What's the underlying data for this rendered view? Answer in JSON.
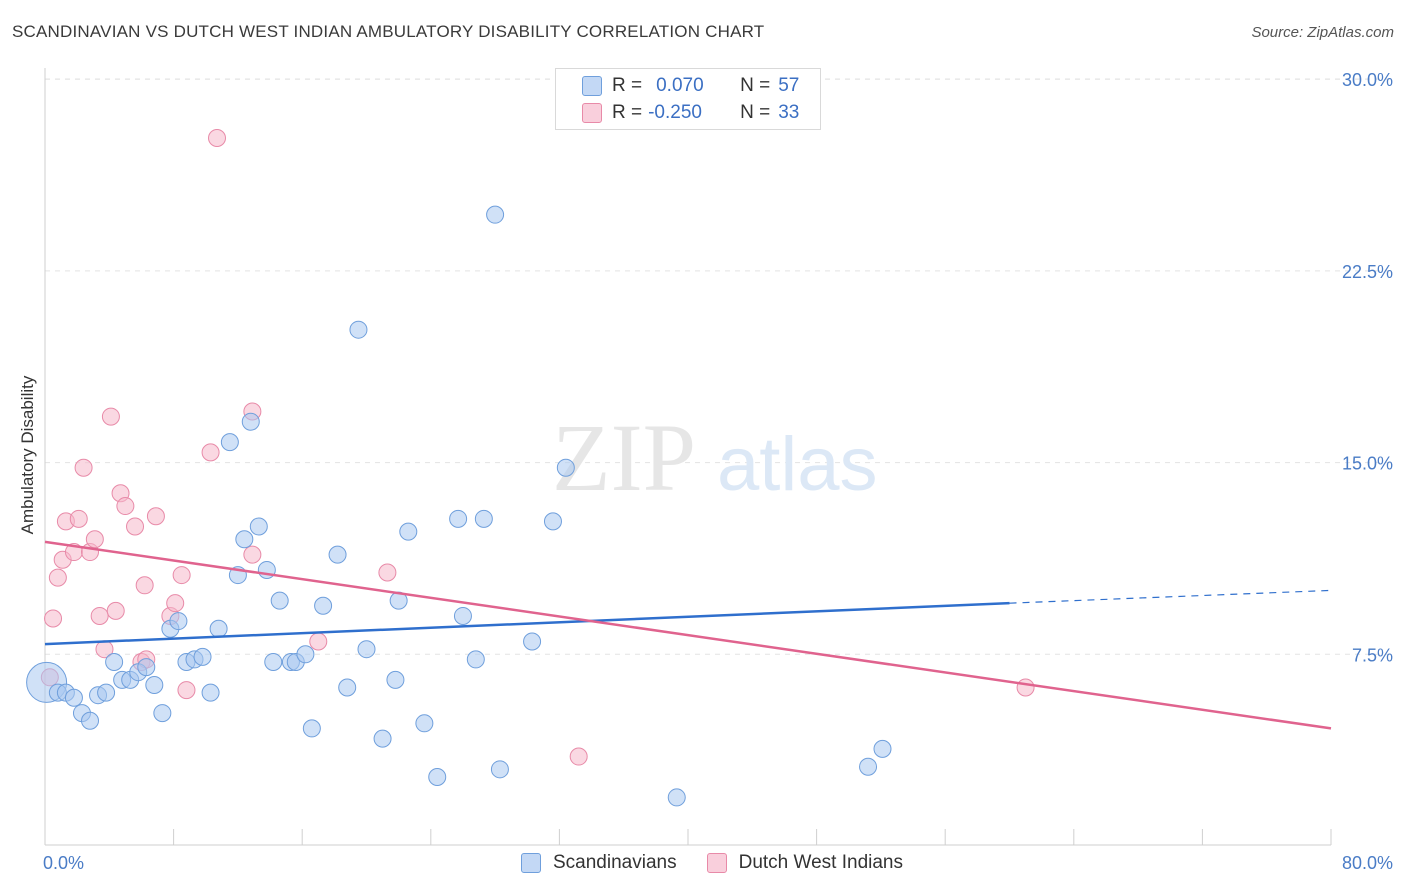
{
  "header": {
    "title": "SCANDINAVIAN VS DUTCH WEST INDIAN AMBULATORY DISABILITY CORRELATION CHART",
    "source": "Source: ZipAtlas.com"
  },
  "watermark": {
    "zip": "ZIP",
    "atlas": "atlas"
  },
  "legend_top": {
    "rows": [
      {
        "r_label": "R =",
        "r_value": "0.070",
        "n_label": "N =",
        "n_value": "57",
        "color": "#aac8f0"
      },
      {
        "r_label": "R =",
        "r_value": "-0.250",
        "n_label": "N =",
        "n_value": "33",
        "color": "#f5b8cb"
      }
    ]
  },
  "legend_bottom": {
    "items": [
      {
        "label": "Scandinavians",
        "color": "#aac8f0"
      },
      {
        "label": "Dutch West Indians",
        "color": "#f5b8cb"
      }
    ]
  },
  "chart_data": {
    "type": "scatter",
    "ylabel": "Ambulatory Disability",
    "xlim": [
      0,
      80
    ],
    "ylim": [
      0,
      31
    ],
    "x_tick_labels": [
      "0.0%",
      "80.0%"
    ],
    "y_ticks": [
      7.5,
      15.0,
      22.5,
      30.0
    ],
    "y_tick_labels": [
      "7.5%",
      "15.0%",
      "22.5%",
      "30.0%"
    ],
    "grid": true,
    "colors": {
      "blue_fill": "#aac8f0",
      "blue_stroke": "#6f9fdc",
      "blue_line": "#2f6fcd",
      "pink_fill": "#f5b8cb",
      "pink_stroke": "#e88aa8",
      "pink_line": "#e0638e",
      "tick_text": "#4a7cc6"
    },
    "series": [
      {
        "name": "Scandinavians",
        "trend": {
          "x0": 0,
          "y0": 7.9,
          "x1": 60,
          "y1": 9.5,
          "dash_x1": 80,
          "dash_y1": 10.0
        },
        "points": [
          [
            0.1,
            6.4
          ],
          [
            0.8,
            6.0
          ],
          [
            1.3,
            6.0
          ],
          [
            1.8,
            5.8
          ],
          [
            2.3,
            5.2
          ],
          [
            2.8,
            4.9
          ],
          [
            3.3,
            5.9
          ],
          [
            3.8,
            6.0
          ],
          [
            4.3,
            7.2
          ],
          [
            4.8,
            6.5
          ],
          [
            5.3,
            6.5
          ],
          [
            5.8,
            6.8
          ],
          [
            6.3,
            7.0
          ],
          [
            6.8,
            6.3
          ],
          [
            7.3,
            5.2
          ],
          [
            7.8,
            8.5
          ],
          [
            8.3,
            8.8
          ],
          [
            8.8,
            7.2
          ],
          [
            9.3,
            7.3
          ],
          [
            9.8,
            7.4
          ],
          [
            10.3,
            6.0
          ],
          [
            10.8,
            8.5
          ],
          [
            11.5,
            15.8
          ],
          [
            12.0,
            10.6
          ],
          [
            12.4,
            12.0
          ],
          [
            12.8,
            16.6
          ],
          [
            13.3,
            12.5
          ],
          [
            13.8,
            10.8
          ],
          [
            14.2,
            7.2
          ],
          [
            14.6,
            9.6
          ],
          [
            15.3,
            7.2
          ],
          [
            15.6,
            7.2
          ],
          [
            16.2,
            7.5
          ],
          [
            16.6,
            4.6
          ],
          [
            17.3,
            9.4
          ],
          [
            18.2,
            11.4
          ],
          [
            18.8,
            6.2
          ],
          [
            19.5,
            20.2
          ],
          [
            20.0,
            7.7
          ],
          [
            21.0,
            4.2
          ],
          [
            21.8,
            6.5
          ],
          [
            22.0,
            9.6
          ],
          [
            22.6,
            12.3
          ],
          [
            23.6,
            4.8
          ],
          [
            24.4,
            2.7
          ],
          [
            25.7,
            12.8
          ],
          [
            26.0,
            9.0
          ],
          [
            26.8,
            7.3
          ],
          [
            27.3,
            12.8
          ],
          [
            28.3,
            3.0
          ],
          [
            28.0,
            24.7
          ],
          [
            30.3,
            8.0
          ],
          [
            31.6,
            12.7
          ],
          [
            32.4,
            14.8
          ],
          [
            39.3,
            1.9
          ],
          [
            51.2,
            3.1
          ],
          [
            52.1,
            3.8
          ]
        ]
      },
      {
        "name": "Dutch West Indians",
        "trend": {
          "x0": 0,
          "y0": 11.9,
          "x1": 80,
          "y1": 4.6
        },
        "points": [
          [
            0.3,
            6.6
          ],
          [
            0.5,
            8.9
          ],
          [
            0.8,
            10.5
          ],
          [
            1.1,
            11.2
          ],
          [
            1.3,
            12.7
          ],
          [
            1.8,
            11.5
          ],
          [
            2.1,
            12.8
          ],
          [
            2.4,
            14.8
          ],
          [
            2.8,
            11.5
          ],
          [
            3.1,
            12.0
          ],
          [
            3.4,
            9.0
          ],
          [
            3.7,
            7.7
          ],
          [
            4.1,
            16.8
          ],
          [
            4.4,
            9.2
          ],
          [
            4.7,
            13.8
          ],
          [
            5.0,
            13.3
          ],
          [
            5.6,
            12.5
          ],
          [
            6.0,
            7.2
          ],
          [
            6.2,
            10.2
          ],
          [
            6.3,
            7.3
          ],
          [
            6.9,
            12.9
          ],
          [
            7.8,
            9.0
          ],
          [
            8.1,
            9.5
          ],
          [
            8.5,
            10.6
          ],
          [
            8.8,
            6.1
          ],
          [
            10.3,
            15.4
          ],
          [
            10.7,
            27.7
          ],
          [
            12.9,
            17.0
          ],
          [
            12.9,
            11.4
          ],
          [
            17.0,
            8.0
          ],
          [
            21.3,
            10.7
          ],
          [
            33.2,
            3.5
          ],
          [
            61.0,
            6.2
          ]
        ]
      }
    ]
  }
}
